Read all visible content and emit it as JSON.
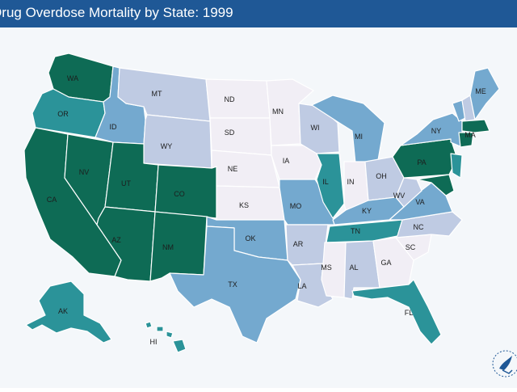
{
  "header": {
    "title": "Drug Overdose Mortality by State: 1999"
  },
  "colors": {
    "level1": "#f1eef5",
    "level2": "#bfcbe3",
    "level3": "#74a9cf",
    "level4": "#2b9399",
    "level5": "#0e6b55"
  },
  "states": [
    {
      "abbr": "WA",
      "level": 5
    },
    {
      "abbr": "OR",
      "level": 4
    },
    {
      "abbr": "CA",
      "level": 5
    },
    {
      "abbr": "NV",
      "level": 5
    },
    {
      "abbr": "ID",
      "level": 3
    },
    {
      "abbr": "MT",
      "level": 2
    },
    {
      "abbr": "WY",
      "level": 2
    },
    {
      "abbr": "UT",
      "level": 5
    },
    {
      "abbr": "AZ",
      "level": 5
    },
    {
      "abbr": "CO",
      "level": 5
    },
    {
      "abbr": "NM",
      "level": 5
    },
    {
      "abbr": "ND",
      "level": 1
    },
    {
      "abbr": "SD",
      "level": 1
    },
    {
      "abbr": "NE",
      "level": 1
    },
    {
      "abbr": "KS",
      "level": 1
    },
    {
      "abbr": "OK",
      "level": 3
    },
    {
      "abbr": "TX",
      "level": 3
    },
    {
      "abbr": "MN",
      "level": 1
    },
    {
      "abbr": "IA",
      "level": 1
    },
    {
      "abbr": "MO",
      "level": 3
    },
    {
      "abbr": "AR",
      "level": 2
    },
    {
      "abbr": "LA",
      "level": 2
    },
    {
      "abbr": "WI",
      "level": 2
    },
    {
      "abbr": "IL",
      "level": 4
    },
    {
      "abbr": "MI",
      "level": 3
    },
    {
      "abbr": "IN",
      "level": 1
    },
    {
      "abbr": "OH",
      "level": 2
    },
    {
      "abbr": "KY",
      "level": 3
    },
    {
      "abbr": "TN",
      "level": 4
    },
    {
      "abbr": "MS",
      "level": 1
    },
    {
      "abbr": "AL",
      "level": 2
    },
    {
      "abbr": "GA",
      "level": 1
    },
    {
      "abbr": "FL",
      "level": 4
    },
    {
      "abbr": "SC",
      "level": 1
    },
    {
      "abbr": "NC",
      "level": 2
    },
    {
      "abbr": "VA",
      "level": 3
    },
    {
      "abbr": "WV",
      "level": 2
    },
    {
      "abbr": "PA",
      "level": 5
    },
    {
      "abbr": "NY",
      "level": 3
    },
    {
      "abbr": "ME",
      "level": 3
    },
    {
      "abbr": "MA",
      "level": 5
    },
    {
      "abbr": "AK",
      "level": 4
    },
    {
      "abbr": "HI",
      "level": 4
    }
  ],
  "logo": {
    "icon": "hhs-eagle-logo"
  }
}
